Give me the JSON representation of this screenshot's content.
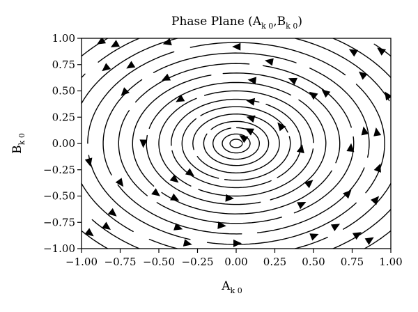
{
  "chart_data": {
    "type": "line",
    "subtype": "streamplot",
    "title": {
      "text": "Phase Plane (A",
      "sub1": "k 0",
      "mid": ",B",
      "sub2": "k 0",
      "end": ")"
    },
    "xlabel": {
      "main": "A",
      "sub": "k 0"
    },
    "ylabel": {
      "main": "B",
      "sub": "k 0"
    },
    "xlim": [
      -1.0,
      1.0
    ],
    "ylim": [
      -1.0,
      1.0
    ],
    "xticks": [
      -1.0,
      -0.75,
      -0.5,
      -0.25,
      0.0,
      0.25,
      0.5,
      0.75,
      1.0
    ],
    "xtick_labels": [
      "−1.00",
      "−0.75",
      "−0.50",
      "−0.25",
      "0.00",
      "0.25",
      "0.50",
      "0.75",
      "1.00"
    ],
    "yticks": [
      1.0,
      0.75,
      0.5,
      0.25,
      0.0,
      -0.25,
      -0.5,
      -0.75,
      -1.0
    ],
    "ytick_labels": [
      "1.00",
      "0.75",
      "0.50",
      "0.25",
      "0.00",
      "−0.25",
      "−0.50",
      "−0.75",
      "−1.00"
    ],
    "grid": false,
    "legend": "none",
    "flow": "counter-clockwise",
    "orbit_radii": [
      0.04,
      0.09,
      0.15,
      0.21,
      0.28,
      0.35,
      0.42,
      0.5,
      0.58,
      0.67,
      0.76,
      0.86,
      0.96,
      1.07,
      1.18,
      1.3
    ],
    "arrows": [
      [
        -0.87,
        0.97
      ],
      [
        -0.78,
        0.94
      ],
      [
        -0.44,
        0.96
      ],
      [
        0.76,
        0.87
      ],
      [
        0.94,
        0.88
      ],
      [
        -0.84,
        0.72
      ],
      [
        -0.68,
        0.74
      ],
      [
        -0.45,
        0.62
      ],
      [
        -0.72,
        0.49
      ],
      [
        -0.36,
        0.42
      ],
      [
        0.1,
        0.4
      ],
      [
        0.11,
        0.6
      ],
      [
        0.22,
        0.78
      ],
      [
        0.01,
        0.92
      ],
      [
        0.37,
        0.6
      ],
      [
        0.5,
        0.46
      ],
      [
        0.58,
        0.48
      ],
      [
        0.82,
        0.65
      ],
      [
        0.98,
        0.45
      ],
      [
        0.1,
        0.24
      ],
      [
        0.09,
        0.12
      ],
      [
        0.05,
        0.05
      ],
      [
        0.29,
        0.16
      ],
      [
        0.83,
        0.11
      ],
      [
        0.91,
        0.1
      ],
      [
        -0.6,
        0.01
      ],
      [
        -0.95,
        -0.17
      ],
      [
        -0.4,
        -0.34
      ],
      [
        -0.3,
        -0.28
      ],
      [
        0.42,
        -0.06
      ],
      [
        0.74,
        -0.05
      ],
      [
        0.92,
        -0.24
      ],
      [
        -0.75,
        -0.37
      ],
      [
        -0.52,
        -0.47
      ],
      [
        -0.4,
        -0.52
      ],
      [
        0.47,
        -0.38
      ],
      [
        0.72,
        -0.48
      ],
      [
        0.9,
        -0.54
      ],
      [
        -0.05,
        -0.52
      ],
      [
        -0.8,
        -0.66
      ],
      [
        -0.38,
        -0.8
      ],
      [
        -0.84,
        -0.79
      ],
      [
        -0.95,
        -0.85
      ],
      [
        0.42,
        -0.58
      ],
      [
        -0.95,
        -0.85
      ],
      [
        -0.32,
        -0.95
      ],
      [
        -0.1,
        -0.78
      ],
      [
        0.0,
        -0.95
      ],
      [
        0.5,
        -0.88
      ],
      [
        0.86,
        -0.92
      ],
      [
        0.64,
        -0.79
      ],
      [
        0.78,
        -0.87
      ]
    ]
  }
}
